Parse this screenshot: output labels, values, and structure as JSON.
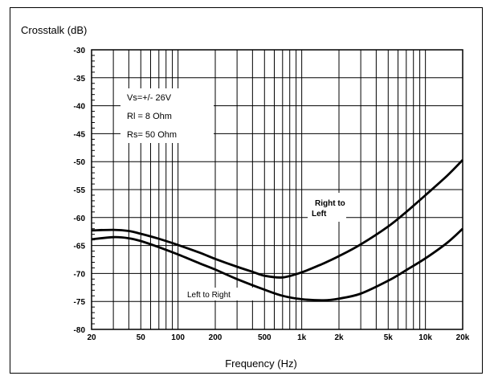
{
  "chart_data": {
    "type": "line",
    "title": "",
    "ylabel": "Crosstalk (dB)",
    "xlabel": "Frequency (Hz)",
    "xscale": "log",
    "xlim": [
      20,
      20000
    ],
    "ylim": [
      -80,
      -30
    ],
    "grid": true,
    "x_ticks": [
      {
        "value": 20,
        "label": "20"
      },
      {
        "value": 50,
        "label": "50"
      },
      {
        "value": 100,
        "label": "100"
      },
      {
        "value": 200,
        "label": "200"
      },
      {
        "value": 500,
        "label": "500"
      },
      {
        "value": 1000,
        "label": "1k"
      },
      {
        "value": 2000,
        "label": "2k"
      },
      {
        "value": 5000,
        "label": "5k"
      },
      {
        "value": 10000,
        "label": "10k"
      },
      {
        "value": 20000,
        "label": "20k"
      }
    ],
    "y_ticks": [
      {
        "value": -30,
        "label": "-30"
      },
      {
        "value": -35,
        "label": "-35"
      },
      {
        "value": -40,
        "label": "-40"
      },
      {
        "value": -45,
        "label": "-45"
      },
      {
        "value": -50,
        "label": "-50"
      },
      {
        "value": -55,
        "label": "-55"
      },
      {
        "value": -60,
        "label": "-60"
      },
      {
        "value": -65,
        "label": "-65"
      },
      {
        "value": -70,
        "label": "-70"
      },
      {
        "value": -75,
        "label": "-75"
      },
      {
        "value": -80,
        "label": "-80"
      }
    ],
    "annotations": {
      "conditions": [
        "Vs=+/- 26V",
        "Rl = 8 Ohm",
        "Rs= 50 Ohm"
      ],
      "right_to_left": [
        "Right to",
        "Left"
      ],
      "left_to_right": "Left to Right"
    },
    "series": [
      {
        "x": [
          20,
          30,
          40,
          50,
          70,
          100,
          150,
          200,
          300,
          400,
          500,
          700,
          1000,
          1500,
          2000,
          3000,
          5000,
          7000,
          10000,
          15000,
          20000
        ],
        "y": [
          -62.3,
          -62.2,
          -62.4,
          -62.9,
          -63.8,
          -64.9,
          -66.3,
          -67.4,
          -68.8,
          -69.7,
          -70.4,
          -70.7,
          -69.8,
          -68.2,
          -66.9,
          -64.8,
          -61.6,
          -59.0,
          -56.0,
          -52.5,
          -49.7
        ]
      },
      {
        "x": [
          20,
          30,
          40,
          50,
          70,
          100,
          150,
          200,
          300,
          500,
          700,
          1000,
          1500,
          2000,
          3000,
          5000,
          7000,
          10000,
          15000,
          20000
        ],
        "y": [
          -63.9,
          -63.5,
          -63.7,
          -64.2,
          -65.3,
          -66.6,
          -68.2,
          -69.3,
          -71.0,
          -72.9,
          -74.0,
          -74.6,
          -74.8,
          -74.5,
          -73.6,
          -71.3,
          -69.4,
          -67.3,
          -64.5,
          -62.0
        ]
      }
    ]
  }
}
